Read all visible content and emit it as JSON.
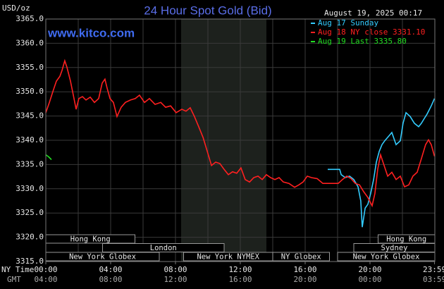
{
  "chart_data": {
    "type": "line",
    "title": "24 Hour Spot Gold (Bid)",
    "site": "www.kitco.com",
    "timestamp": "August 19, 2025 00:17",
    "ylabel": "USD/oz",
    "xlabel": "NY Time",
    "x2label": "GMT",
    "xlim": [
      0,
      24
    ],
    "ylim": [
      3315,
      3365
    ],
    "grid": true,
    "yticks": [
      {
        "value": 3315,
        "label": "3315.0"
      },
      {
        "value": 3320,
        "label": "3320.0"
      },
      {
        "value": 3325,
        "label": "3325.0"
      },
      {
        "value": 3330,
        "label": "3330.0"
      },
      {
        "value": 3335,
        "label": "3335.0"
      },
      {
        "value": 3340,
        "label": "3340.0"
      },
      {
        "value": 3345,
        "label": "3345.0"
      },
      {
        "value": 3350,
        "label": "3350.0"
      },
      {
        "value": 3355,
        "label": "3355.0"
      },
      {
        "value": 3360,
        "label": "3360.0"
      },
      {
        "value": 3365,
        "label": "3365.0"
      }
    ],
    "xticks": [
      {
        "value": 0,
        "label": "00:00"
      },
      {
        "value": 4,
        "label": "04:00"
      },
      {
        "value": 8,
        "label": "08:00"
      },
      {
        "value": 12,
        "label": "12:00"
      },
      {
        "value": 16,
        "label": "16:00"
      },
      {
        "value": 20,
        "label": "20:00"
      },
      {
        "value": 23.98,
        "label": "23:59"
      }
    ],
    "x2ticks": [
      {
        "value": 0,
        "label": "04:00"
      },
      {
        "value": 4,
        "label": "08:00"
      },
      {
        "value": 8,
        "label": "12:00"
      },
      {
        "value": 12,
        "label": "16:00"
      },
      {
        "value": 16,
        "label": "20:00"
      },
      {
        "value": 20,
        "label": "00:00"
      },
      {
        "value": 23.98,
        "label": "03:59"
      }
    ],
    "xgrid": [
      2,
      4,
      6,
      8,
      10,
      12,
      14,
      16,
      18,
      20,
      22
    ],
    "session_rows": [
      [
        {
          "label": "Hong Kong",
          "start": 0,
          "end": 5.5
        },
        {
          "label": "Hong Kong",
          "start": 20.5,
          "end": 24
        }
      ],
      [
        {
          "label": "London",
          "start": 3.5,
          "end": 11
        },
        {
          "label": "Sydney",
          "start": 19,
          "end": 24
        }
      ],
      [
        {
          "label": "New York Globex",
          "start": 0,
          "end": 7
        },
        {
          "label": "New York NYMEX",
          "start": 8.5,
          "end": 14
        },
        {
          "label": "NY Globex",
          "start": 14,
          "end": 17.5
        },
        {
          "label": "New York Globex",
          "start": 18,
          "end": 24
        }
      ]
    ],
    "series": [
      {
        "name": "Aug 17 Sunday",
        "color": "#33ccff",
        "x": [
          17.39,
          18.13,
          18.22,
          18.48,
          18.74,
          19.0,
          19.26,
          19.43,
          19.52,
          19.7,
          19.87,
          20.04,
          20.22,
          20.39,
          20.57,
          20.74,
          20.91,
          21.09,
          21.35,
          21.61,
          21.87,
          22.04,
          22.22,
          22.48,
          22.74,
          23.0,
          23.17,
          23.35,
          23.52,
          23.78,
          23.98
        ],
        "values": [
          3334.0,
          3334.0,
          3332.9,
          3332.3,
          3332.6,
          3331.9,
          3330.4,
          3327.5,
          3322.1,
          3326.0,
          3326.8,
          3329.0,
          3331.9,
          3335.5,
          3337.7,
          3339.1,
          3339.9,
          3340.6,
          3341.6,
          3339.1,
          3339.9,
          3343.5,
          3345.7,
          3344.9,
          3343.5,
          3342.8,
          3343.5,
          3344.5,
          3345.4,
          3347.1,
          3348.6
        ]
      },
      {
        "name": "Aug 18 NY close 3331.10",
        "color": "#ff2020",
        "x": [
          0,
          0.22,
          0.43,
          0.65,
          0.87,
          1.0,
          1.17,
          1.3,
          1.52,
          1.74,
          1.87,
          2.04,
          2.26,
          2.48,
          2.74,
          3.0,
          3.26,
          3.48,
          3.65,
          3.78,
          3.96,
          4.17,
          4.39,
          4.65,
          4.91,
          5.22,
          5.52,
          5.78,
          6.09,
          6.39,
          6.74,
          7.09,
          7.39,
          7.7,
          8.04,
          8.39,
          8.65,
          8.91,
          9.17,
          9.43,
          9.7,
          9.96,
          10.22,
          10.48,
          10.74,
          11.0,
          11.26,
          11.52,
          11.78,
          12.04,
          12.3,
          12.57,
          12.83,
          13.09,
          13.35,
          13.61,
          13.87,
          14.13,
          14.39,
          14.65,
          15.0,
          15.35,
          15.61,
          15.87,
          16.13,
          16.39,
          16.74,
          17.09,
          18.04,
          18.3,
          18.57,
          18.83,
          19.09,
          19.35,
          19.61,
          19.87,
          20.13,
          20.3,
          20.48,
          20.65,
          20.83,
          21.09,
          21.35,
          21.61,
          21.87,
          22.13,
          22.39,
          22.65,
          22.91,
          23.17,
          23.43,
          23.61,
          23.78,
          23.98
        ],
        "values": [
          3345.7,
          3347.8,
          3350.0,
          3352.2,
          3353.2,
          3354.4,
          3356.4,
          3355.1,
          3352.2,
          3348.6,
          3346.4,
          3348.6,
          3349.0,
          3348.3,
          3348.9,
          3347.8,
          3348.6,
          3351.8,
          3352.6,
          3350.8,
          3348.6,
          3347.8,
          3344.9,
          3346.8,
          3347.8,
          3348.3,
          3348.6,
          3349.3,
          3347.8,
          3348.6,
          3347.4,
          3347.8,
          3346.8,
          3347.1,
          3345.7,
          3346.4,
          3346.0,
          3346.7,
          3344.9,
          3342.8,
          3340.6,
          3337.7,
          3334.8,
          3335.5,
          3335.2,
          3334.0,
          3332.9,
          3333.5,
          3333.2,
          3334.3,
          3331.9,
          3331.4,
          3332.3,
          3332.6,
          3331.9,
          3332.9,
          3332.3,
          3331.9,
          3332.3,
          3331.4,
          3331.1,
          3330.3,
          3330.8,
          3331.4,
          3332.6,
          3332.3,
          3332.1,
          3331.1,
          3331.1,
          3331.9,
          3332.6,
          3332.1,
          3331.1,
          3330.8,
          3329.4,
          3328.2,
          3326.5,
          3329.0,
          3334.1,
          3337.0,
          3335.2,
          3332.6,
          3333.4,
          3331.9,
          3332.6,
          3330.4,
          3330.8,
          3332.6,
          3333.4,
          3336.2,
          3339.1,
          3340.1,
          3339.1,
          3336.7
        ]
      },
      {
        "name": "Aug 19 Last 3335.80",
        "color": "#22dd22",
        "x": [
          0,
          0.17,
          0.35
        ],
        "values": [
          3337.0,
          3336.6,
          3336.0
        ]
      }
    ]
  }
}
